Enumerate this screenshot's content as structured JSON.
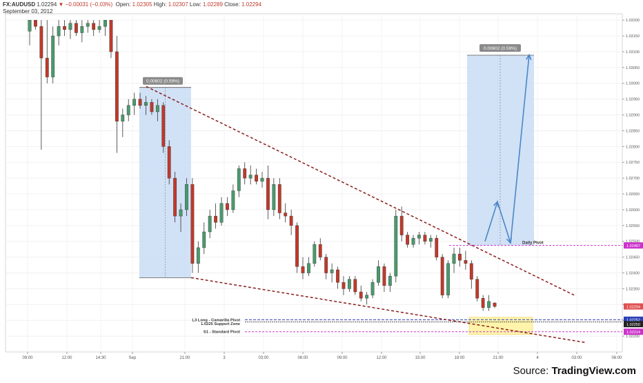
{
  "header": {
    "symbol": "FX:AUDUSD",
    "last": "1.02294",
    "change_arrow": "▼",
    "change": "−0.00031 (−0.03%)",
    "open_label": "Open:",
    "open": "1.02305",
    "high_label": "High:",
    "high": "1.02307",
    "low_label": "Low:",
    "low": "1.02289",
    "close_label": "Close:",
    "close": "1.02294",
    "date": "September 03, 2012"
  },
  "source": {
    "prefix": "Source: ",
    "brand": "TradingView.com"
  },
  "colors": {
    "up_candle": "#4a9a6e",
    "down_candle": "#c0392b",
    "trendline": "#8b1a1a",
    "box_fill": "#c9dcf5",
    "arrow": "#4a86c8",
    "pivot_magenta": "#cc33cc",
    "pivot_blue": "#2a3fb5",
    "zone_yellow": "#fff3a0"
  },
  "chart_data": {
    "type": "candlestick",
    "title": "FX:AUDUSD",
    "y_range": [
      1.0215,
      1.0322
    ],
    "y_ticks": [
      "1.03200",
      "1.03150",
      "1.03100",
      "1.03050",
      "1.03000",
      "1.02950",
      "1.02900",
      "1.02850",
      "1.02800",
      "1.02750",
      "1.02700",
      "1.02650",
      "1.02600",
      "1.02550",
      "1.02500",
      "1.02450",
      "1.02400",
      "1.02350",
      "1.02300",
      "1.02250",
      "1.02200"
    ],
    "x_ticks": [
      "09:00",
      "12:00",
      "14:30",
      "Sep",
      "21:00",
      "3",
      "03:00",
      "06:00",
      "09:00",
      "12:00",
      "15:00",
      "18:00",
      "21:00",
      "4",
      "03:00",
      "06:00"
    ],
    "candles": [
      [
        1.03165,
        1.032,
        1.0312,
        1.032
      ],
      [
        1.032,
        1.032,
        1.0317,
        1.0318
      ],
      [
        1.0318,
        1.032,
        1.0279,
        1.0308
      ],
      [
        1.0308,
        1.032,
        1.03,
        1.0302
      ],
      [
        1.0302,
        1.0318,
        1.03,
        1.0315
      ],
      [
        1.0315,
        1.032,
        1.0312,
        1.0318
      ],
      [
        1.0318,
        1.032,
        1.0315,
        1.0317
      ],
      [
        1.0317,
        1.032,
        1.0314,
        1.0319
      ],
      [
        1.0319,
        1.032,
        1.0315,
        1.0316
      ],
      [
        1.0316,
        1.032,
        1.0313,
        1.0318
      ],
      [
        1.0318,
        1.032,
        1.0316,
        1.0319
      ],
      [
        1.0319,
        1.032,
        1.0315,
        1.0317
      ],
      [
        1.0317,
        1.032,
        1.0316,
        1.0318
      ],
      [
        1.0318,
        1.032,
        1.0315,
        1.032
      ],
      [
        1.032,
        1.032,
        1.0308,
        1.031
      ],
      [
        1.031,
        1.0315,
        1.0278,
        1.0288
      ],
      [
        1.0288,
        1.0292,
        1.0283,
        1.029
      ],
      [
        1.029,
        1.0295,
        1.0288,
        1.0293
      ],
      [
        1.0293,
        1.0297,
        1.029,
        1.0295
      ],
      [
        1.0295,
        1.0297,
        1.0292,
        1.0293
      ],
      [
        1.0293,
        1.0296,
        1.029,
        1.0294
      ],
      [
        1.0294,
        1.0295,
        1.029,
        1.0291
      ],
      [
        1.0291,
        1.0295,
        1.0288,
        1.0293
      ],
      [
        1.0293,
        1.0294,
        1.0278,
        1.028
      ],
      [
        1.028,
        1.0282,
        1.0268,
        1.027
      ],
      [
        1.027,
        1.0272,
        1.0256,
        1.0258
      ],
      [
        1.0258,
        1.0262,
        1.0253,
        1.026
      ],
      [
        1.026,
        1.027,
        1.0258,
        1.0268
      ],
      [
        1.0268,
        1.027,
        1.024,
        1.0243
      ],
      [
        1.0243,
        1.025,
        1.024,
        1.0248
      ],
      [
        1.0248,
        1.0256,
        1.0246,
        1.0253
      ],
      [
        1.0253,
        1.026,
        1.0251,
        1.0258
      ],
      [
        1.0258,
        1.0262,
        1.0254,
        1.0256
      ],
      [
        1.0256,
        1.0264,
        1.0255,
        1.0262
      ],
      [
        1.0262,
        1.0264,
        1.0258,
        1.026
      ],
      [
        1.026,
        1.0268,
        1.0259,
        1.0266
      ],
      [
        1.0266,
        1.0274,
        1.0264,
        1.0273
      ],
      [
        1.0273,
        1.0275,
        1.0268,
        1.027
      ],
      [
        1.027,
        1.0274,
        1.0268,
        1.0271
      ],
      [
        1.0271,
        1.0273,
        1.0268,
        1.0269
      ],
      [
        1.0269,
        1.0272,
        1.0267,
        1.027
      ],
      [
        1.027,
        1.0274,
        1.0257,
        1.026
      ],
      [
        1.026,
        1.027,
        1.0258,
        1.0268
      ],
      [
        1.0268,
        1.027,
        1.0257,
        1.0259
      ],
      [
        1.0259,
        1.0262,
        1.0256,
        1.0258
      ],
      [
        1.0258,
        1.026,
        1.0252,
        1.0255
      ],
      [
        1.0255,
        1.0256,
        1.024,
        1.0242
      ],
      [
        1.0242,
        1.0245,
        1.0238,
        1.024
      ],
      [
        1.024,
        1.0245,
        1.0239,
        1.0243
      ],
      [
        1.0243,
        1.025,
        1.0242,
        1.0249
      ],
      [
        1.0249,
        1.0251,
        1.0244,
        1.0245
      ],
      [
        1.0245,
        1.0246,
        1.0238,
        1.024
      ],
      [
        1.024,
        1.0243,
        1.0237,
        1.0241
      ],
      [
        1.0241,
        1.0242,
        1.0235,
        1.0237
      ],
      [
        1.0237,
        1.0239,
        1.0233,
        1.0235
      ],
      [
        1.0235,
        1.0239,
        1.0234,
        1.0238
      ],
      [
        1.0238,
        1.0239,
        1.0233,
        1.0234
      ],
      [
        1.0234,
        1.0236,
        1.0231,
        1.0232
      ],
      [
        1.0232,
        1.0234,
        1.023,
        1.0233
      ],
      [
        1.0233,
        1.0238,
        1.0232,
        1.0237
      ],
      [
        1.0237,
        1.0244,
        1.0236,
        1.0242
      ],
      [
        1.0242,
        1.0243,
        1.0234,
        1.0236
      ],
      [
        1.0236,
        1.024,
        1.0234,
        1.0239
      ],
      [
        1.0239,
        1.026,
        1.0237,
        1.0258
      ],
      [
        1.0258,
        1.0261,
        1.025,
        1.0252
      ],
      [
        1.0252,
        1.0253,
        1.0248,
        1.0249
      ],
      [
        1.0249,
        1.0252,
        1.0248,
        1.0251
      ],
      [
        1.0251,
        1.0253,
        1.0249,
        1.0252
      ],
      [
        1.0252,
        1.0253,
        1.0249,
        1.025
      ],
      [
        1.025,
        1.0252,
        1.0248,
        1.0251
      ],
      [
        1.0251,
        1.0252,
        1.0244,
        1.0245
      ],
      [
        1.0245,
        1.0246,
        1.0232,
        1.0233
      ],
      [
        1.0233,
        1.0244,
        1.0232,
        1.0243
      ],
      [
        1.0243,
        1.0248,
        1.024,
        1.0246
      ],
      [
        1.0246,
        1.0248,
        1.0242,
        1.0244
      ],
      [
        1.0244,
        1.0247,
        1.0241,
        1.0243
      ],
      [
        1.0243,
        1.0244,
        1.0235,
        1.0238
      ],
      [
        1.0238,
        1.0239,
        1.0231,
        1.0232
      ],
      [
        1.0232,
        1.0233,
        1.0228,
        1.0229
      ],
      [
        1.0229,
        1.0233,
        1.0228,
        1.0231
      ],
      [
        1.02305,
        1.02307,
        1.02289,
        1.02294
      ]
    ],
    "annotations": {
      "measure_left_label": "0.00602 (0.59%)",
      "measure_right_label": "0.00602 (0.59%)",
      "daily_pivot_label": "Daily Pivot",
      "daily_pivot_value": "1.02487",
      "l3_label": "L3 Long - Camarilla Pivot",
      "l3_value": "1.02252",
      "support_label": "1.0225 Support Zone",
      "support_value": "1.02250",
      "s1_label": "S1 - Standard Pivot",
      "s1_value": "1.02214",
      "last_price_value": "1.02294"
    }
  }
}
